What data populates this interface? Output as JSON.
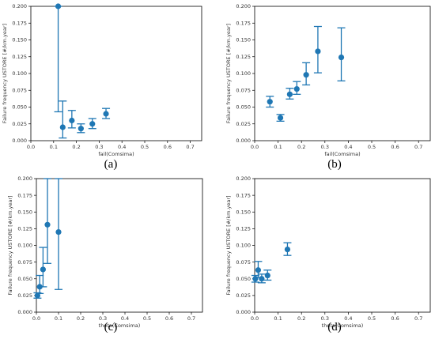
{
  "colors": {
    "marker": "#1f77b4",
    "axis": "#000000",
    "text": "#333333"
  },
  "chart_data": [
    {
      "panel": "(a)",
      "type": "scatter",
      "xlabel": "fail(Comsima)",
      "ylabel": "Failure frequency USTORE [#/km.year]",
      "xlim": [
        0,
        0.75
      ],
      "ylim": [
        0,
        0.2
      ],
      "xticks": [
        "0.0",
        "0.1",
        "0.2",
        "0.3",
        "0.4",
        "0.5",
        "0.6",
        "0.7"
      ],
      "yticks": [
        "0.000",
        "0.025",
        "0.050",
        "0.075",
        "0.100",
        "0.125",
        "0.150",
        "0.175",
        "0.200"
      ],
      "grid": false,
      "points": [
        {
          "x": 0.12,
          "y": 0.2,
          "low": 0.043,
          "high": 0.2
        },
        {
          "x": 0.14,
          "y": 0.02,
          "low": 0.004,
          "high": 0.059
        },
        {
          "x": 0.18,
          "y": 0.03,
          "low": 0.019,
          "high": 0.045
        },
        {
          "x": 0.22,
          "y": 0.018,
          "low": 0.012,
          "high": 0.025
        },
        {
          "x": 0.27,
          "y": 0.025,
          "low": 0.018,
          "high": 0.033
        },
        {
          "x": 0.33,
          "y": 0.04,
          "low": 0.033,
          "high": 0.048
        }
      ]
    },
    {
      "panel": "(b)",
      "type": "scatter",
      "xlabel": "fail(Comsima)",
      "ylabel": "Failure frequency USTORE [#/km.year]",
      "xlim": [
        0,
        0.75
      ],
      "ylim": [
        0,
        0.2
      ],
      "xticks": [
        "0.0",
        "0.1",
        "0.2",
        "0.3",
        "0.4",
        "0.5",
        "0.6",
        "0.7"
      ],
      "yticks": [
        "0.000",
        "0.025",
        "0.050",
        "0.075",
        "0.100",
        "0.125",
        "0.150",
        "0.175",
        "0.200"
      ],
      "grid": false,
      "points": [
        {
          "x": 0.065,
          "y": 0.058,
          "low": 0.05,
          "high": 0.066
        },
        {
          "x": 0.11,
          "y": 0.034,
          "low": 0.029,
          "high": 0.039
        },
        {
          "x": 0.15,
          "y": 0.069,
          "low": 0.062,
          "high": 0.078
        },
        {
          "x": 0.18,
          "y": 0.077,
          "low": 0.069,
          "high": 0.088
        },
        {
          "x": 0.22,
          "y": 0.098,
          "low": 0.083,
          "high": 0.116
        },
        {
          "x": 0.27,
          "y": 0.133,
          "low": 0.101,
          "high": 0.17
        },
        {
          "x": 0.37,
          "y": 0.124,
          "low": 0.089,
          "high": 0.168
        }
      ]
    },
    {
      "panel": "(c)",
      "type": "scatter",
      "xlabel": "theta(Comsima)",
      "ylabel": "Failure frequency USTORE [#/km.year]",
      "xlim": [
        0,
        0.75
      ],
      "ylim": [
        0,
        0.2
      ],
      "xticks": [
        "0.0",
        "0.1",
        "0.2",
        "0.3",
        "0.4",
        "0.5",
        "0.6",
        "0.7"
      ],
      "yticks": [
        "0.000",
        "0.025",
        "0.050",
        "0.075",
        "0.100",
        "0.125",
        "0.150",
        "0.175",
        "0.200"
      ],
      "grid": false,
      "points": [
        {
          "x": 0.005,
          "y": 0.025,
          "low": 0.021,
          "high": 0.029
        },
        {
          "x": 0.015,
          "y": 0.038,
          "low": 0.028,
          "high": 0.055
        },
        {
          "x": 0.03,
          "y": 0.064,
          "low": 0.038,
          "high": 0.097
        },
        {
          "x": 0.05,
          "y": 0.131,
          "low": 0.073,
          "high": 0.2
        },
        {
          "x": 0.1,
          "y": 0.12,
          "low": 0.034,
          "high": 0.2
        }
      ]
    },
    {
      "panel": "(d)",
      "type": "scatter",
      "xlabel": "theta(Comsima)",
      "ylabel": "Failure frequency USTORE [#/km.year]",
      "xlim": [
        0,
        0.75
      ],
      "ylim": [
        0,
        0.2
      ],
      "xticks": [
        "0.0",
        "0.1",
        "0.2",
        "0.3",
        "0.4",
        "0.5",
        "0.6",
        "0.7"
      ],
      "yticks": [
        "0.000",
        "0.025",
        "0.050",
        "0.075",
        "0.100",
        "0.125",
        "0.150",
        "0.175",
        "0.200"
      ],
      "grid": false,
      "points": [
        {
          "x": 0.003,
          "y": 0.05,
          "low": 0.045,
          "high": 0.055
        },
        {
          "x": 0.015,
          "y": 0.063,
          "low": 0.052,
          "high": 0.076
        },
        {
          "x": 0.03,
          "y": 0.05,
          "low": 0.044,
          "high": 0.057
        },
        {
          "x": 0.055,
          "y": 0.055,
          "low": 0.048,
          "high": 0.063
        },
        {
          "x": 0.14,
          "y": 0.094,
          "low": 0.085,
          "high": 0.104
        }
      ]
    }
  ]
}
